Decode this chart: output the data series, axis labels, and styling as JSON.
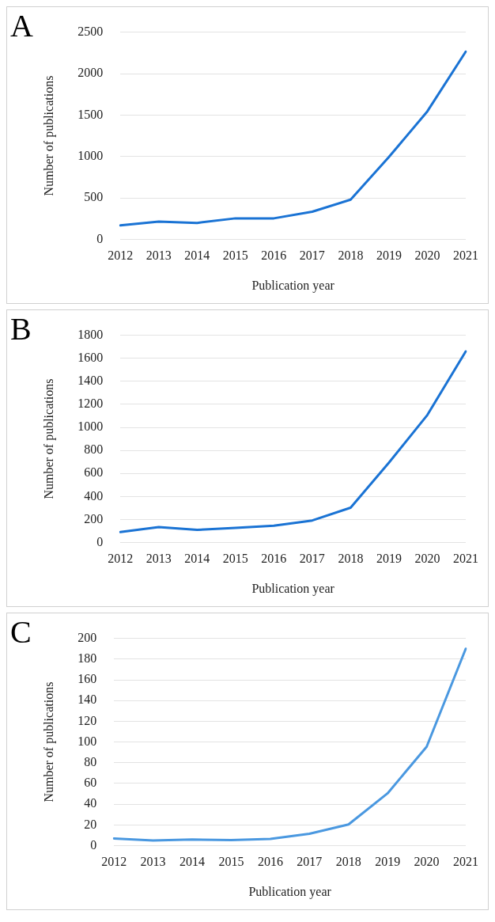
{
  "chart_data": [
    {
      "type": "line",
      "title": "A",
      "xlabel": "Publication year",
      "ylabel": "Number of publications",
      "categories": [
        "2012",
        "2013",
        "2014",
        "2015",
        "2016",
        "2017",
        "2018",
        "2019",
        "2020",
        "2021"
      ],
      "series": [
        {
          "color": "#1a73d4",
          "values": [
            170,
            215,
            200,
            255,
            255,
            335,
            480,
            995,
            1545,
            2265
          ]
        }
      ],
      "ylim": [
        0,
        2500
      ],
      "yticks": [
        0,
        500,
        1000,
        1500,
        2000,
        2500
      ],
      "grid": "y",
      "legend": false,
      "marker": "none",
      "line_style": "solid"
    },
    {
      "type": "line",
      "title": "B",
      "xlabel": "Publication year",
      "ylabel": "Number of publications",
      "categories": [
        "2012",
        "2013",
        "2014",
        "2015",
        "2016",
        "2017",
        "2018",
        "2019",
        "2020",
        "2021"
      ],
      "series": [
        {
          "color": "#1a73d4",
          "values": [
            92,
            134,
            110,
            128,
            147,
            192,
            303,
            695,
            1108,
            1660
          ]
        }
      ],
      "ylim": [
        0,
        1800
      ],
      "yticks": [
        0,
        200,
        400,
        600,
        800,
        1000,
        1200,
        1400,
        1600,
        1800
      ],
      "grid": "y",
      "legend": false,
      "marker": "none",
      "line_style": "solid"
    },
    {
      "type": "line",
      "title": "C",
      "xlabel": "Publication year",
      "ylabel": "Number of publications",
      "categories": [
        "2012",
        "2013",
        "2014",
        "2015",
        "2016",
        "2017",
        "2018",
        "2019",
        "2020",
        "2021"
      ],
      "series": [
        {
          "color": "#4a98e0",
          "values": [
            7,
            5,
            6,
            5.5,
            6.5,
            11.5,
            20.5,
            50.5,
            95.5,
            190
          ]
        }
      ],
      "ylim": [
        0,
        200
      ],
      "yticks": [
        0,
        20,
        40,
        60,
        80,
        100,
        120,
        140,
        160,
        180,
        200
      ],
      "grid": "y",
      "legend": false,
      "marker": "none",
      "line_style": "solid"
    }
  ]
}
